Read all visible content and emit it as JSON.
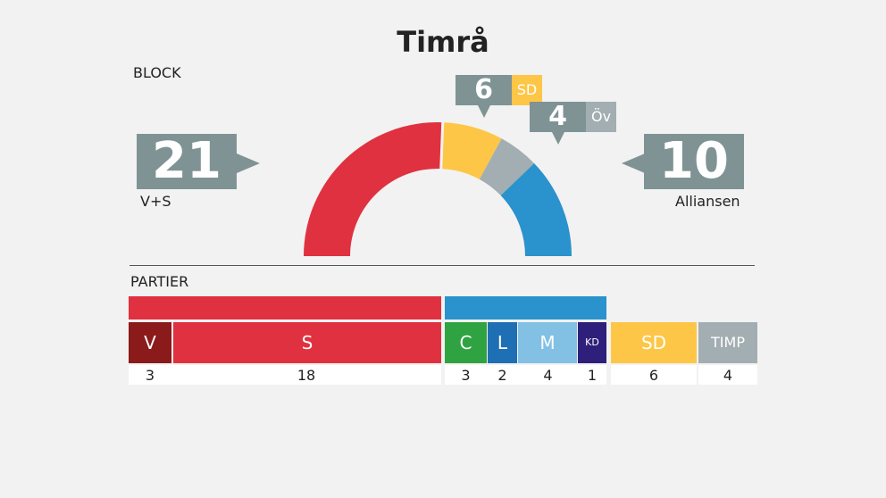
{
  "title": "Timrå",
  "block_label": "BLOCK",
  "parties_label": "PARTIER",
  "chart_data": {
    "type": "hemicycle",
    "title": "Timrå",
    "total_seats": 41,
    "blocks": [
      {
        "name": "V+S",
        "seats": 21,
        "color": "#e03140"
      },
      {
        "name": "SD",
        "seats": 6,
        "color": "#fec646"
      },
      {
        "name": "Öv",
        "seats": 4,
        "color": "#a2aeb1"
      },
      {
        "name": "Alliansen",
        "seats": 10,
        "color": "#2a92cc"
      }
    ],
    "parties": [
      {
        "name": "V",
        "seats": 3,
        "color": "#8b1a1a"
      },
      {
        "name": "S",
        "seats": 18,
        "color": "#e03140"
      },
      {
        "name": "C",
        "seats": 3,
        "color": "#2fa341"
      },
      {
        "name": "L",
        "seats": 2,
        "color": "#1f6fb4"
      },
      {
        "name": "M",
        "seats": 4,
        "color": "#82c0e4"
      },
      {
        "name": "KD",
        "seats": 1,
        "color": "#2e1f7a"
      },
      {
        "name": "SD",
        "seats": 6,
        "color": "#fec646"
      },
      {
        "name": "TIMP",
        "seats": 4,
        "color": "#a2aeb1"
      }
    ]
  },
  "left_block": {
    "seats": "21",
    "name": "V+S"
  },
  "right_block": {
    "seats": "10",
    "name": "Alliansen"
  },
  "sd_callout": {
    "seats": "6",
    "tag": "SD"
  },
  "ov_callout": {
    "seats": "4",
    "tag": "Öv"
  }
}
